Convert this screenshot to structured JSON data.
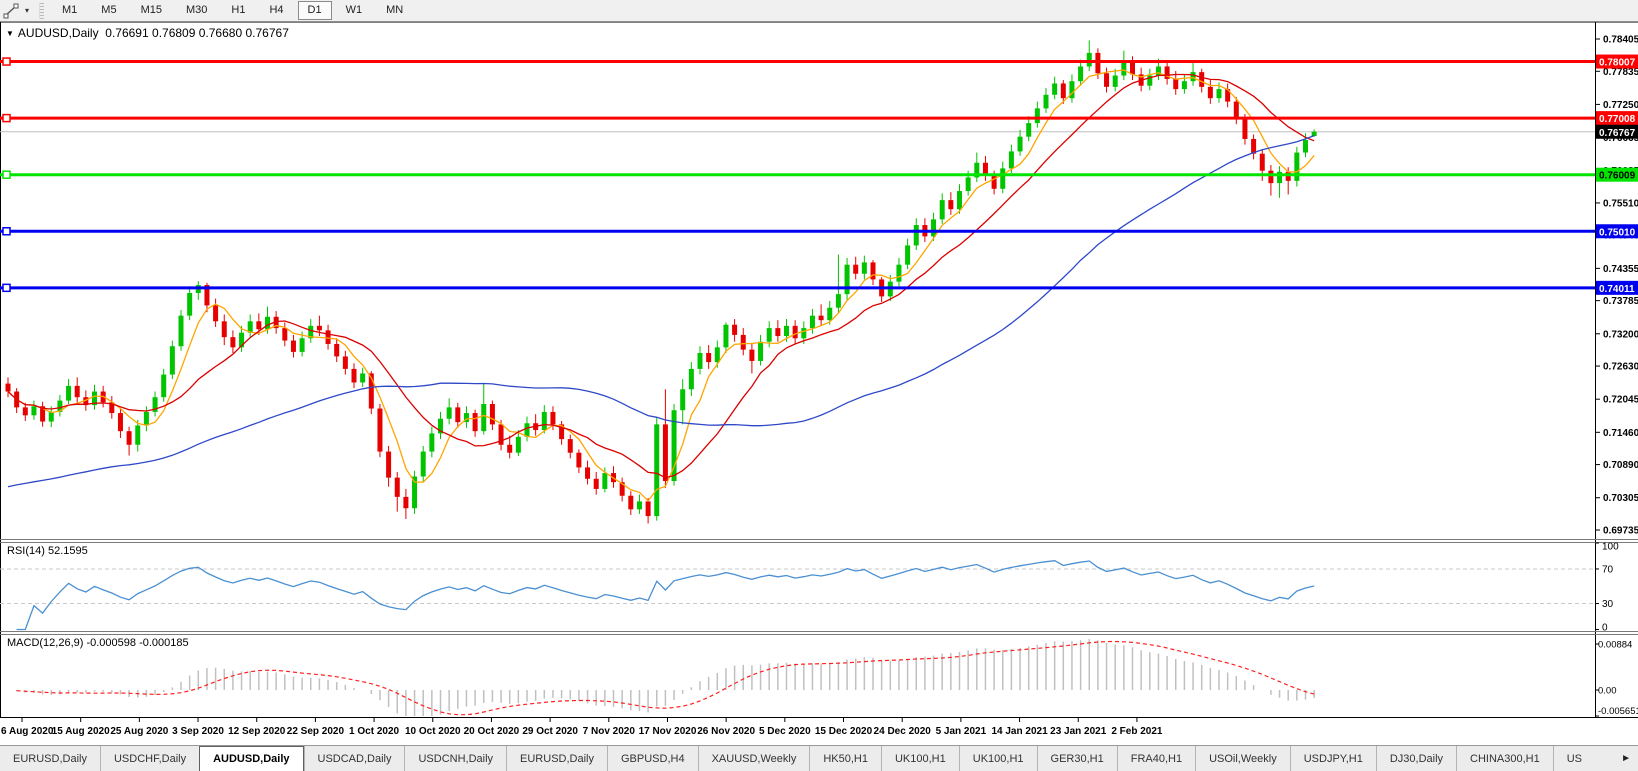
{
  "toolbar": {
    "timeframes": [
      "M1",
      "M5",
      "M15",
      "M30",
      "H1",
      "H4",
      "D1",
      "W1",
      "MN"
    ],
    "active_timeframe": "D1",
    "line_styles_icon": "line-styles-icon",
    "dropdown_caret": "▾"
  },
  "colors": {
    "bull": "#00C400",
    "bear": "#E60000",
    "line_red": "#FF0000",
    "line_green": "#00E400",
    "line_blue": "#0000F0",
    "current_line": "#C0C0C0",
    "current_badge": "#000000",
    "ma_fast": "#FFA500",
    "ma_mid": "#DC0000",
    "ma_slow": "#2E48C8",
    "rsi_line": "#4A90D2",
    "macd_hist": "#C0C0C0",
    "macd_signal": "#FF2020",
    "dashed_level": "#C9C9C9"
  },
  "chart": {
    "type": "candlestick",
    "title": {
      "symbol": "AUDUSD,Daily",
      "open": "0.76691",
      "high": "0.76809",
      "low": "0.76680",
      "close": "0.76767"
    },
    "price_axis": {
      "ticks": [
        "0.78405",
        "0.77835",
        "0.77250",
        "0.76665",
        "0.76085",
        "0.75510",
        "0.74940",
        "0.74355",
        "0.73785",
        "0.73200",
        "0.72630",
        "0.72045",
        "0.71460",
        "0.70890",
        "0.70305",
        "0.69735"
      ],
      "min": 0.69735,
      "max": 0.78405
    },
    "hlines": [
      {
        "price": 0.78007,
        "label": "0.78007",
        "color": "#FF0000",
        "text_color": "#FFFFFF"
      },
      {
        "price": 0.77008,
        "label": "0.77008",
        "color": "#FF0000",
        "text_color": "#FFFFFF"
      },
      {
        "price": 0.76009,
        "label": "0.76009",
        "color": "#00E400",
        "text_color": "#000000"
      },
      {
        "price": 0.7501,
        "label": "0.75010",
        "color": "#0000F0",
        "text_color": "#FFFFFF"
      },
      {
        "price": 0.74011,
        "label": "0.74011",
        "color": "#0000F0",
        "text_color": "#FFFFFF"
      }
    ],
    "current_price": {
      "value": 0.76767,
      "label": "0.76767"
    },
    "date_axis": {
      "labels": [
        "6 Aug 2020",
        "15 Aug 2020",
        "25 Aug 2020",
        "3 Sep 2020",
        "12 Sep 2020",
        "22 Sep 2020",
        "1 Oct 2020",
        "10 Oct 2020",
        "20 Oct 2020",
        "29 Oct 2020",
        "7 Nov 2020",
        "17 Nov 2020",
        "26 Nov 2020",
        "5 Dec 2020",
        "15 Dec 2020",
        "24 Dec 2020",
        "5 Jan 2021",
        "14 Jan 2021",
        "23 Jan 2021",
        "2 Feb 2021"
      ]
    },
    "mas": [
      {
        "period": 5,
        "color": "#FFA500"
      },
      {
        "period": 13,
        "color": "#DC0000"
      },
      {
        "period": 50,
        "color": "#2E48C8",
        "blend_from": 0.705
      }
    ],
    "candles": [
      [
        0.7232,
        0.7243,
        0.7208,
        0.7218
      ],
      [
        0.7218,
        0.7224,
        0.718,
        0.719
      ],
      [
        0.719,
        0.7198,
        0.7166,
        0.7176
      ],
      [
        0.7176,
        0.7202,
        0.7168,
        0.7192
      ],
      [
        0.7192,
        0.72,
        0.7156,
        0.7165
      ],
      [
        0.7165,
        0.7192,
        0.7155,
        0.7182
      ],
      [
        0.7182,
        0.7212,
        0.7174,
        0.7202
      ],
      [
        0.7202,
        0.724,
        0.7196,
        0.7228
      ],
      [
        0.7228,
        0.7243,
        0.7198,
        0.7208
      ],
      [
        0.7208,
        0.722,
        0.7184,
        0.7194
      ],
      [
        0.7194,
        0.723,
        0.7186,
        0.7218
      ],
      [
        0.7218,
        0.7228,
        0.719,
        0.7199
      ],
      [
        0.7199,
        0.721,
        0.717,
        0.718
      ],
      [
        0.718,
        0.7188,
        0.7136,
        0.7148
      ],
      [
        0.7148,
        0.7156,
        0.7105,
        0.7124
      ],
      [
        0.7124,
        0.7168,
        0.7112,
        0.7158
      ],
      [
        0.7158,
        0.7192,
        0.7148,
        0.7182
      ],
      [
        0.7182,
        0.7218,
        0.7174,
        0.7208
      ],
      [
        0.7208,
        0.7258,
        0.72,
        0.7248
      ],
      [
        0.7248,
        0.7308,
        0.724,
        0.7298
      ],
      [
        0.7298,
        0.7362,
        0.729,
        0.7352
      ],
      [
        0.7352,
        0.7404,
        0.7344,
        0.7392
      ],
      [
        0.7392,
        0.7413,
        0.738,
        0.7406
      ],
      [
        0.7406,
        0.741,
        0.7358,
        0.737
      ],
      [
        0.737,
        0.7382,
        0.7332,
        0.7342
      ],
      [
        0.7342,
        0.7354,
        0.73,
        0.7314
      ],
      [
        0.7314,
        0.7326,
        0.7286,
        0.7296
      ],
      [
        0.7296,
        0.7334,
        0.7288,
        0.7322
      ],
      [
        0.7322,
        0.7354,
        0.7314,
        0.7342
      ],
      [
        0.7342,
        0.7356,
        0.7318,
        0.7328
      ],
      [
        0.7328,
        0.7368,
        0.732,
        0.735
      ],
      [
        0.735,
        0.736,
        0.732,
        0.733
      ],
      [
        0.733,
        0.734,
        0.7298,
        0.7308
      ],
      [
        0.7308,
        0.7318,
        0.7278,
        0.7288
      ],
      [
        0.7288,
        0.7324,
        0.728,
        0.7312
      ],
      [
        0.7312,
        0.7346,
        0.7304,
        0.7334
      ],
      [
        0.7334,
        0.7352,
        0.7316,
        0.7326
      ],
      [
        0.7326,
        0.7336,
        0.7292,
        0.7302
      ],
      [
        0.7302,
        0.7312,
        0.727,
        0.728
      ],
      [
        0.728,
        0.729,
        0.7248,
        0.7258
      ],
      [
        0.7258,
        0.7268,
        0.7224,
        0.7234
      ],
      [
        0.7234,
        0.726,
        0.7226,
        0.725
      ],
      [
        0.725,
        0.7254,
        0.7178,
        0.7188
      ],
      [
        0.7188,
        0.7196,
        0.7102,
        0.7112
      ],
      [
        0.7112,
        0.7122,
        0.705,
        0.7066
      ],
      [
        0.7066,
        0.7076,
        0.7006,
        0.7032
      ],
      [
        0.7032,
        0.7046,
        0.6993,
        0.7012
      ],
      [
        0.7012,
        0.7078,
        0.7002,
        0.7068
      ],
      [
        0.7068,
        0.7122,
        0.7058,
        0.7112
      ],
      [
        0.7112,
        0.7156,
        0.7102,
        0.7144
      ],
      [
        0.7144,
        0.7182,
        0.7134,
        0.717
      ],
      [
        0.717,
        0.7206,
        0.716,
        0.719
      ],
      [
        0.719,
        0.7198,
        0.7154,
        0.7164
      ],
      [
        0.7164,
        0.7192,
        0.7154,
        0.718
      ],
      [
        0.718,
        0.7186,
        0.7138,
        0.7148
      ],
      [
        0.7148,
        0.7232,
        0.7142,
        0.7196
      ],
      [
        0.7196,
        0.7202,
        0.715,
        0.716
      ],
      [
        0.716,
        0.7168,
        0.7114,
        0.7124
      ],
      [
        0.7124,
        0.714,
        0.71,
        0.711
      ],
      [
        0.711,
        0.715,
        0.7104,
        0.7138
      ],
      [
        0.7138,
        0.7174,
        0.713,
        0.7162
      ],
      [
        0.7162,
        0.7178,
        0.714,
        0.715
      ],
      [
        0.715,
        0.7194,
        0.7144,
        0.7182
      ],
      [
        0.7182,
        0.7192,
        0.715,
        0.716
      ],
      [
        0.716,
        0.7166,
        0.7124,
        0.7134
      ],
      [
        0.7134,
        0.7142,
        0.71,
        0.711
      ],
      [
        0.711,
        0.7116,
        0.7074,
        0.7084
      ],
      [
        0.7084,
        0.7096,
        0.7054,
        0.7064
      ],
      [
        0.7064,
        0.7076,
        0.7036,
        0.7046
      ],
      [
        0.7046,
        0.7084,
        0.704,
        0.7074
      ],
      [
        0.7074,
        0.7086,
        0.7048,
        0.7058
      ],
      [
        0.7058,
        0.7066,
        0.7024,
        0.7034
      ],
      [
        0.7034,
        0.7042,
        0.7,
        0.701
      ],
      [
        0.701,
        0.7036,
        0.7002,
        0.7024
      ],
      [
        0.7024,
        0.703,
        0.6985,
        0.6998
      ],
      [
        0.6998,
        0.7172,
        0.699,
        0.716
      ],
      [
        0.716,
        0.7222,
        0.7048,
        0.706
      ],
      [
        0.706,
        0.7196,
        0.7052,
        0.7185
      ],
      [
        0.7185,
        0.724,
        0.716,
        0.7222
      ],
      [
        0.7222,
        0.727,
        0.721,
        0.7258
      ],
      [
        0.7258,
        0.7298,
        0.7248,
        0.7286
      ],
      [
        0.7286,
        0.73,
        0.7258,
        0.727
      ],
      [
        0.727,
        0.7308,
        0.726,
        0.7296
      ],
      [
        0.7296,
        0.734,
        0.7286,
        0.7336
      ],
      [
        0.7336,
        0.7346,
        0.7306,
        0.7318
      ],
      [
        0.7318,
        0.733,
        0.7282,
        0.7292
      ],
      [
        0.7292,
        0.7304,
        0.725,
        0.7272
      ],
      [
        0.7272,
        0.7318,
        0.7264,
        0.7306
      ],
      [
        0.7306,
        0.7342,
        0.7296,
        0.733
      ],
      [
        0.733,
        0.7344,
        0.7306,
        0.7316
      ],
      [
        0.7316,
        0.7346,
        0.7306,
        0.7334
      ],
      [
        0.7334,
        0.7344,
        0.7302,
        0.7312
      ],
      [
        0.7312,
        0.7342,
        0.7302,
        0.733
      ],
      [
        0.733,
        0.7364,
        0.732,
        0.7352
      ],
      [
        0.7352,
        0.7372,
        0.7334,
        0.7344
      ],
      [
        0.7344,
        0.7378,
        0.7336,
        0.7366
      ],
      [
        0.7366,
        0.746,
        0.7356,
        0.739
      ],
      [
        0.739,
        0.7454,
        0.738,
        0.7442
      ],
      [
        0.7442,
        0.7456,
        0.7416,
        0.7426
      ],
      [
        0.7426,
        0.7458,
        0.7416,
        0.7446
      ],
      [
        0.7446,
        0.745,
        0.7406,
        0.7416
      ],
      [
        0.7416,
        0.742,
        0.7376,
        0.7386
      ],
      [
        0.7386,
        0.7424,
        0.7378,
        0.7412
      ],
      [
        0.7412,
        0.7454,
        0.7404,
        0.7442
      ],
      [
        0.7442,
        0.7488,
        0.7434,
        0.7476
      ],
      [
        0.7476,
        0.7524,
        0.7468,
        0.7512
      ],
      [
        0.7512,
        0.7524,
        0.7482,
        0.7492
      ],
      [
        0.7492,
        0.7534,
        0.7484,
        0.7522
      ],
      [
        0.7522,
        0.7568,
        0.7514,
        0.7556
      ],
      [
        0.7556,
        0.757,
        0.753,
        0.754
      ],
      [
        0.754,
        0.7584,
        0.7532,
        0.7572
      ],
      [
        0.7572,
        0.7608,
        0.7564,
        0.7596
      ],
      [
        0.7596,
        0.764,
        0.7588,
        0.7622
      ],
      [
        0.7622,
        0.7634,
        0.759,
        0.76
      ],
      [
        0.76,
        0.7608,
        0.7566,
        0.7576
      ],
      [
        0.7576,
        0.7624,
        0.7568,
        0.7612
      ],
      [
        0.7612,
        0.7654,
        0.7604,
        0.7642
      ],
      [
        0.7642,
        0.768,
        0.7634,
        0.7668
      ],
      [
        0.7668,
        0.7704,
        0.766,
        0.7692
      ],
      [
        0.7692,
        0.773,
        0.7684,
        0.7718
      ],
      [
        0.7718,
        0.7754,
        0.771,
        0.7742
      ],
      [
        0.7742,
        0.7774,
        0.7734,
        0.7762
      ],
      [
        0.7762,
        0.7768,
        0.7726,
        0.7736
      ],
      [
        0.7736,
        0.7778,
        0.7728,
        0.7766
      ],
      [
        0.7766,
        0.7804,
        0.7758,
        0.7792
      ],
      [
        0.7792,
        0.7838,
        0.7784,
        0.7816
      ],
      [
        0.7816,
        0.7824,
        0.777,
        0.778
      ],
      [
        0.778,
        0.779,
        0.7746,
        0.7756
      ],
      [
        0.7756,
        0.7788,
        0.7748,
        0.7776
      ],
      [
        0.7776,
        0.782,
        0.7768,
        0.78
      ],
      [
        0.78,
        0.781,
        0.7768,
        0.7778
      ],
      [
        0.7778,
        0.779,
        0.7748,
        0.7758
      ],
      [
        0.7758,
        0.7788,
        0.775,
        0.7776
      ],
      [
        0.7776,
        0.7806,
        0.7768,
        0.7792
      ],
      [
        0.7792,
        0.7802,
        0.776,
        0.777
      ],
      [
        0.777,
        0.7784,
        0.7742,
        0.7752
      ],
      [
        0.7752,
        0.7778,
        0.7744,
        0.7766
      ],
      [
        0.7766,
        0.78,
        0.7758,
        0.7782
      ],
      [
        0.7782,
        0.7788,
        0.7746,
        0.7756
      ],
      [
        0.7756,
        0.7768,
        0.7726,
        0.7736
      ],
      [
        0.7736,
        0.7764,
        0.7728,
        0.7752
      ],
      [
        0.7752,
        0.7762,
        0.772,
        0.773
      ],
      [
        0.773,
        0.7738,
        0.769,
        0.77
      ],
      [
        0.77,
        0.7708,
        0.7654,
        0.7664
      ],
      [
        0.7664,
        0.7672,
        0.7628,
        0.7638
      ],
      [
        0.7638,
        0.7646,
        0.759,
        0.7608
      ],
      [
        0.7608,
        0.7618,
        0.7564,
        0.7586
      ],
      [
        0.7586,
        0.7616,
        0.756,
        0.7606
      ],
      [
        0.7606,
        0.7614,
        0.7566,
        0.759
      ],
      [
        0.759,
        0.765,
        0.758,
        0.764
      ],
      [
        0.764,
        0.7674,
        0.7632,
        0.7662
      ],
      [
        0.76691,
        0.76809,
        0.7668,
        0.76767
      ]
    ]
  },
  "rsi_panel": {
    "label": "RSI(14) 52.1595",
    "period": 14,
    "current": "52.1595",
    "levels": [
      "100",
      "70",
      "30",
      "0"
    ],
    "dashed_levels": [
      70,
      30
    ]
  },
  "macd_panel": {
    "label": "MACD(12,26,9) -0.000598 -0.000185",
    "params": "12,26,9",
    "current_macd": "-0.000598",
    "current_signal": "-0.000185",
    "axis": [
      "0.00884",
      "0.00",
      "-0.005651"
    ]
  },
  "tabs": {
    "items": [
      "EURUSD,Daily",
      "USDCHF,Daily",
      "AUDUSD,Daily",
      "USDCAD,Daily",
      "USDCNH,Daily",
      "EURUSD,Daily",
      "GBPUSD,H4",
      "XAUUSD,Weekly",
      "HK50,H1",
      "UK100,H1",
      "UK100,H1",
      "GER30,H1",
      "FRA40,H1",
      "USOil,Weekly",
      "USDJPY,H1",
      "DJ30,Daily",
      "CHINA300,H1",
      "US"
    ],
    "active_index": 2,
    "scroll_right": "►"
  }
}
